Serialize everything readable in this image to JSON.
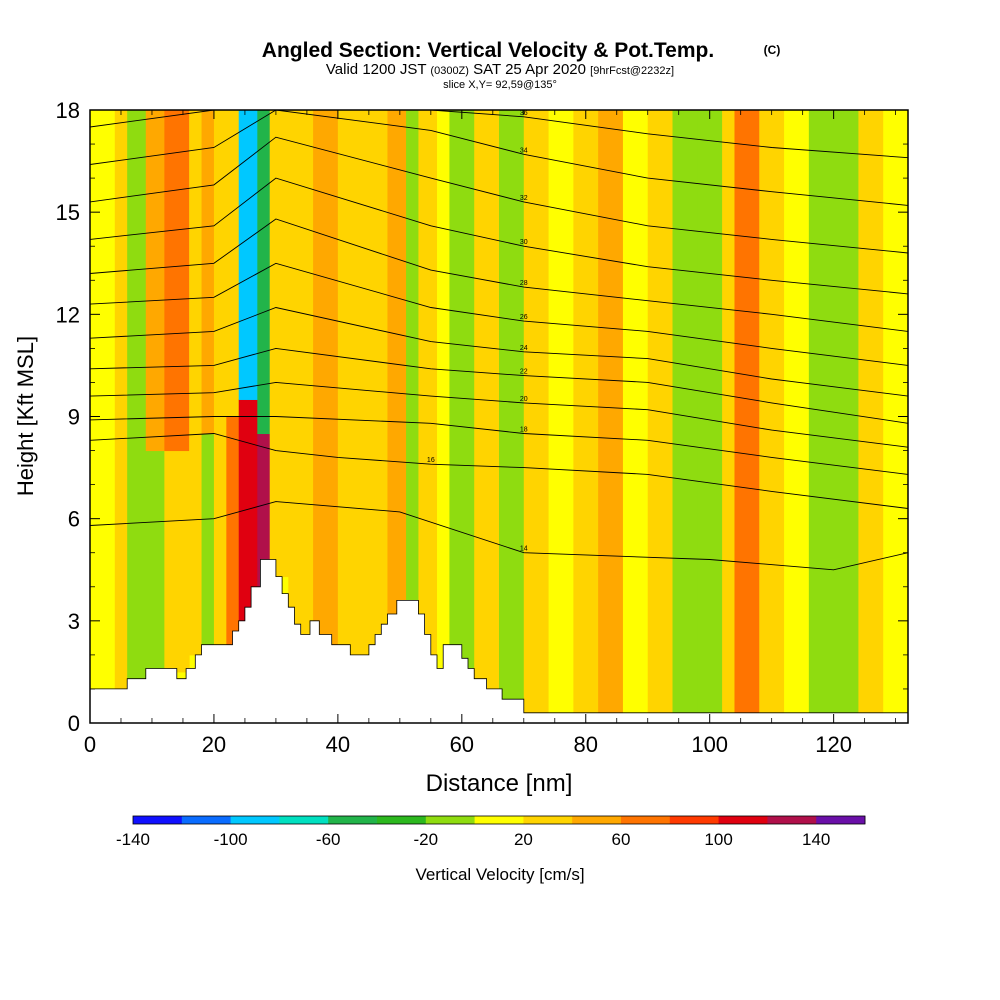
{
  "chart_data": {
    "type": "heatmap",
    "title": {
      "main": "Angled Section: Vertical Velocity & Pot.Temp.",
      "main_suffix": "(C)",
      "line2_a": "Valid 1200 JST",
      "line2_b": "(0300Z)",
      "line2_c": "SAT 25 Apr 2020",
      "line2_d": "[9hrFcst@2232z]",
      "line3": "slice X,Y= 92,59@135°"
    },
    "xlabel": "Distance [nm]",
    "ylabel": "Height [Kft MSL]",
    "xlim": [
      0,
      132
    ],
    "ylim": [
      0,
      18
    ],
    "xticks": [
      0,
      20,
      40,
      60,
      80,
      100,
      120
    ],
    "yticks": [
      0,
      3,
      6,
      9,
      12,
      15,
      18
    ],
    "colorbar": {
      "label": "Vertical Velocity [cm/s]",
      "ticks": [
        -140,
        -100,
        -60,
        -20,
        20,
        60,
        100,
        140
      ],
      "colors": [
        "#1010ff",
        "#0a6cff",
        "#00c8ff",
        "#00e0c0",
        "#22b44a",
        "#2cb81e",
        "#8fdc10",
        "#ffff00",
        "#ffd400",
        "#ffa800",
        "#ff7400",
        "#ff3a00",
        "#e00010",
        "#b0104a",
        "#6a10a8"
      ]
    },
    "terrain_height": [
      {
        "x": 0,
        "h": 1.0
      },
      {
        "x": 6,
        "h": 1.0
      },
      {
        "x": 6,
        "h": 1.3
      },
      {
        "x": 9,
        "h": 1.3
      },
      {
        "x": 9,
        "h": 1.6
      },
      {
        "x": 14,
        "h": 1.6
      },
      {
        "x": 14,
        "h": 1.3
      },
      {
        "x": 15.5,
        "h": 1.3
      },
      {
        "x": 15.5,
        "h": 1.6
      },
      {
        "x": 17,
        "h": 1.6
      },
      {
        "x": 17,
        "h": 2.0
      },
      {
        "x": 18,
        "h": 2.0
      },
      {
        "x": 18,
        "h": 2.3
      },
      {
        "x": 23,
        "h": 2.3
      },
      {
        "x": 23,
        "h": 2.7
      },
      {
        "x": 24,
        "h": 2.7
      },
      {
        "x": 24,
        "h": 3.0
      },
      {
        "x": 25,
        "h": 3.0
      },
      {
        "x": 25,
        "h": 3.4
      },
      {
        "x": 26,
        "h": 3.4
      },
      {
        "x": 26,
        "h": 4.0
      },
      {
        "x": 27.5,
        "h": 4.0
      },
      {
        "x": 27.5,
        "h": 4.8
      },
      {
        "x": 30,
        "h": 4.8
      },
      {
        "x": 30,
        "h": 4.3
      },
      {
        "x": 31,
        "h": 4.3
      },
      {
        "x": 31,
        "h": 3.8
      },
      {
        "x": 32,
        "h": 3.8
      },
      {
        "x": 32,
        "h": 3.4
      },
      {
        "x": 33,
        "h": 3.4
      },
      {
        "x": 33,
        "h": 2.9
      },
      {
        "x": 34,
        "h": 2.9
      },
      {
        "x": 34,
        "h": 2.6
      },
      {
        "x": 35.5,
        "h": 2.6
      },
      {
        "x": 35.5,
        "h": 3.0
      },
      {
        "x": 37,
        "h": 3.0
      },
      {
        "x": 37,
        "h": 2.6
      },
      {
        "x": 39,
        "h": 2.6
      },
      {
        "x": 39,
        "h": 2.3
      },
      {
        "x": 42,
        "h": 2.3
      },
      {
        "x": 42,
        "h": 2.0
      },
      {
        "x": 45,
        "h": 2.0
      },
      {
        "x": 45,
        "h": 2.3
      },
      {
        "x": 46,
        "h": 2.3
      },
      {
        "x": 46,
        "h": 2.6
      },
      {
        "x": 47,
        "h": 2.6
      },
      {
        "x": 47,
        "h": 2.9
      },
      {
        "x": 48,
        "h": 2.9
      },
      {
        "x": 48,
        "h": 3.2
      },
      {
        "x": 49.5,
        "h": 3.2
      },
      {
        "x": 49.5,
        "h": 3.6
      },
      {
        "x": 53,
        "h": 3.6
      },
      {
        "x": 53,
        "h": 3.2
      },
      {
        "x": 54,
        "h": 3.2
      },
      {
        "x": 54,
        "h": 2.6
      },
      {
        "x": 55,
        "h": 2.6
      },
      {
        "x": 55,
        "h": 2.0
      },
      {
        "x": 56,
        "h": 2.0
      },
      {
        "x": 56,
        "h": 1.6
      },
      {
        "x": 57,
        "h": 1.6
      },
      {
        "x": 57,
        "h": 2.3
      },
      {
        "x": 60,
        "h": 2.3
      },
      {
        "x": 60,
        "h": 1.9
      },
      {
        "x": 61,
        "h": 1.9
      },
      {
        "x": 61,
        "h": 1.6
      },
      {
        "x": 62,
        "h": 1.6
      },
      {
        "x": 62,
        "h": 1.3
      },
      {
        "x": 64,
        "h": 1.3
      },
      {
        "x": 64,
        "h": 1.0
      },
      {
        "x": 66.5,
        "h": 1.0
      },
      {
        "x": 66.5,
        "h": 0.7
      },
      {
        "x": 70,
        "h": 0.7
      },
      {
        "x": 70,
        "h": 0.3
      },
      {
        "x": 132,
        "h": 0.3
      }
    ],
    "color_bands": [
      {
        "x0": 0,
        "x1": 4,
        "y0": 0.8,
        "y1": 18,
        "v": -10
      },
      {
        "x0": 4,
        "x1": 6,
        "y0": 1.0,
        "y1": 18,
        "v": 20
      },
      {
        "x0": 6,
        "x1": 9,
        "y0": 1.0,
        "y1": 18,
        "v": -20
      },
      {
        "x0": 9,
        "x1": 12,
        "y0": 1.5,
        "y1": 8.0,
        "v": -30
      },
      {
        "x0": 9,
        "x1": 12,
        "y0": 8.0,
        "y1": 18,
        "v": 30
      },
      {
        "x0": 12,
        "x1": 16,
        "y0": 1.5,
        "y1": 8.0,
        "v": 10
      },
      {
        "x0": 12,
        "x1": 16,
        "y0": 8.0,
        "y1": 18,
        "v": 50
      },
      {
        "x0": 16,
        "x1": 18,
        "y0": 2.0,
        "y1": 18,
        "v": 20
      },
      {
        "x0": 18,
        "x1": 20,
        "y0": 2.3,
        "y1": 8.5,
        "v": -15
      },
      {
        "x0": 18,
        "x1": 20,
        "y0": 8.5,
        "y1": 18,
        "v": 30
      },
      {
        "x0": 20,
        "x1": 22,
        "y0": 2.3,
        "y1": 18,
        "v": 20
      },
      {
        "x0": 22,
        "x1": 24,
        "y0": 2.3,
        "y1": 9.0,
        "v": 60
      },
      {
        "x0": 22,
        "x1": 24,
        "y0": 9.0,
        "y1": 18,
        "v": 20
      },
      {
        "x0": 24,
        "x1": 27,
        "y0": 3.0,
        "y1": 9.5,
        "v": 100
      },
      {
        "x0": 24,
        "x1": 27,
        "y0": 9.5,
        "y1": 18,
        "v": -100
      },
      {
        "x0": 27,
        "x1": 29,
        "y0": 4.0,
        "y1": 8.5,
        "v": 110
      },
      {
        "x0": 27,
        "x1": 29,
        "y0": 8.5,
        "y1": 18,
        "v": -60
      },
      {
        "x0": 29,
        "x1": 32,
        "y0": 4.3,
        "y1": 18,
        "v": 20
      },
      {
        "x0": 32,
        "x1": 36,
        "y0": 2.6,
        "y1": 18,
        "v": 10
      },
      {
        "x0": 36,
        "x1": 40,
        "y0": 2.3,
        "y1": 18,
        "v": 30
      },
      {
        "x0": 40,
        "x1": 44,
        "y0": 2.0,
        "y1": 18,
        "v": 20
      },
      {
        "x0": 44,
        "x1": 48,
        "y0": 2.0,
        "y1": 18,
        "v": 10
      },
      {
        "x0": 48,
        "x1": 51,
        "y0": 3.2,
        "y1": 18,
        "v": 30
      },
      {
        "x0": 51,
        "x1": 53,
        "y0": 3.6,
        "y1": 18,
        "v": -20
      },
      {
        "x0": 53,
        "x1": 56,
        "y0": 1.6,
        "y1": 18,
        "v": 20
      },
      {
        "x0": 56,
        "x1": 58,
        "y0": 1.6,
        "y1": 18,
        "v": -10
      },
      {
        "x0": 58,
        "x1": 62,
        "y0": 1.6,
        "y1": 18,
        "v": -30
      },
      {
        "x0": 62,
        "x1": 66,
        "y0": 1.0,
        "y1": 18,
        "v": 10
      },
      {
        "x0": 66,
        "x1": 70,
        "y0": 0.7,
        "y1": 18,
        "v": -20
      },
      {
        "x0": 70,
        "x1": 74,
        "y0": 0.3,
        "y1": 18,
        "v": 20
      },
      {
        "x0": 74,
        "x1": 78,
        "y0": 0.3,
        "y1": 18,
        "v": -10
      },
      {
        "x0": 78,
        "x1": 82,
        "y0": 0.3,
        "y1": 18,
        "v": 20
      },
      {
        "x0": 82,
        "x1": 86,
        "y0": 0.3,
        "y1": 18,
        "v": 30
      },
      {
        "x0": 86,
        "x1": 90,
        "y0": 0.3,
        "y1": 18,
        "v": -10
      },
      {
        "x0": 90,
        "x1": 94,
        "y0": 0.3,
        "y1": 18,
        "v": 20
      },
      {
        "x0": 94,
        "x1": 98,
        "y0": 0.3,
        "y1": 18,
        "v": -20
      },
      {
        "x0": 98,
        "x1": 102,
        "y0": 0.3,
        "y1": 18,
        "v": -30
      },
      {
        "x0": 102,
        "x1": 104,
        "y0": 0.3,
        "y1": 18,
        "v": 20
      },
      {
        "x0": 104,
        "x1": 108,
        "y0": 0.3,
        "y1": 18,
        "v": 50
      },
      {
        "x0": 108,
        "x1": 112,
        "y0": 0.3,
        "y1": 18,
        "v": 20
      },
      {
        "x0": 112,
        "x1": 116,
        "y0": 0.3,
        "y1": 18,
        "v": -10
      },
      {
        "x0": 116,
        "x1": 120,
        "y0": 0.3,
        "y1": 18,
        "v": -30
      },
      {
        "x0": 120,
        "x1": 124,
        "y0": 0.3,
        "y1": 18,
        "v": -20
      },
      {
        "x0": 124,
        "x1": 128,
        "y0": 0.3,
        "y1": 18,
        "v": 20
      },
      {
        "x0": 128,
        "x1": 132,
        "y0": 0.3,
        "y1": 18,
        "v": -10
      }
    ],
    "isentropes": [
      {
        "label": "14",
        "points": [
          [
            0,
            5.8
          ],
          [
            20,
            6.0
          ],
          [
            30,
            6.5
          ],
          [
            50,
            6.2
          ],
          [
            70,
            5.0
          ],
          [
            100,
            4.8
          ],
          [
            120,
            4.5
          ],
          [
            132,
            5.0
          ]
        ]
      },
      {
        "label": "16",
        "points": [
          [
            0,
            8.3
          ],
          [
            20,
            8.5
          ],
          [
            30,
            8.0
          ],
          [
            40,
            7.8
          ],
          [
            55,
            7.6
          ],
          [
            70,
            7.5
          ],
          [
            90,
            7.3
          ],
          [
            110,
            6.8
          ],
          [
            132,
            6.3
          ]
        ]
      },
      {
        "label": "18",
        "points": [
          [
            0,
            8.9
          ],
          [
            20,
            9.0
          ],
          [
            30,
            9.0
          ],
          [
            55,
            8.8
          ],
          [
            70,
            8.5
          ],
          [
            90,
            8.3
          ],
          [
            110,
            7.8
          ],
          [
            132,
            7.3
          ]
        ]
      },
      {
        "label": "20",
        "points": [
          [
            0,
            9.6
          ],
          [
            20,
            9.7
          ],
          [
            30,
            10.0
          ],
          [
            55,
            9.6
          ],
          [
            70,
            9.4
          ],
          [
            90,
            9.2
          ],
          [
            110,
            8.6
          ],
          [
            132,
            8.1
          ]
        ]
      },
      {
        "label": "22",
        "points": [
          [
            0,
            10.4
          ],
          [
            20,
            10.5
          ],
          [
            30,
            11.0
          ],
          [
            55,
            10.4
          ],
          [
            70,
            10.2
          ],
          [
            90,
            10.0
          ],
          [
            110,
            9.4
          ],
          [
            132,
            8.8
          ]
        ]
      },
      {
        "label": "24",
        "points": [
          [
            0,
            11.3
          ],
          [
            20,
            11.5
          ],
          [
            30,
            12.2
          ],
          [
            55,
            11.2
          ],
          [
            70,
            10.9
          ],
          [
            90,
            10.7
          ],
          [
            110,
            10.1
          ],
          [
            132,
            9.6
          ]
        ]
      },
      {
        "label": "26",
        "points": [
          [
            0,
            12.3
          ],
          [
            20,
            12.5
          ],
          [
            30,
            13.5
          ],
          [
            55,
            12.2
          ],
          [
            70,
            11.8
          ],
          [
            90,
            11.5
          ],
          [
            110,
            11.0
          ],
          [
            132,
            10.5
          ]
        ]
      },
      {
        "label": "28",
        "points": [
          [
            0,
            13.2
          ],
          [
            20,
            13.5
          ],
          [
            30,
            14.8
          ],
          [
            55,
            13.3
          ],
          [
            70,
            12.8
          ],
          [
            90,
            12.4
          ],
          [
            110,
            12.0
          ],
          [
            132,
            11.5
          ]
        ]
      },
      {
        "label": "30",
        "points": [
          [
            0,
            14.2
          ],
          [
            20,
            14.6
          ],
          [
            30,
            16.0
          ],
          [
            55,
            14.6
          ],
          [
            70,
            14.0
          ],
          [
            90,
            13.4
          ],
          [
            110,
            13.0
          ],
          [
            132,
            12.6
          ]
        ]
      },
      {
        "label": "32",
        "points": [
          [
            0,
            15.3
          ],
          [
            20,
            15.8
          ],
          [
            30,
            17.2
          ],
          [
            55,
            16.0
          ],
          [
            70,
            15.3
          ],
          [
            90,
            14.6
          ],
          [
            110,
            14.2
          ],
          [
            132,
            13.8
          ]
        ]
      },
      {
        "label": "34",
        "points": [
          [
            0,
            16.4
          ],
          [
            20,
            16.9
          ],
          [
            30,
            18.0
          ],
          [
            55,
            17.4
          ],
          [
            70,
            16.7
          ],
          [
            90,
            16.0
          ],
          [
            110,
            15.6
          ],
          [
            132,
            15.2
          ]
        ]
      },
      {
        "label": "36",
        "points": [
          [
            0,
            17.5
          ],
          [
            20,
            18.0
          ],
          [
            55,
            18.0
          ],
          [
            70,
            17.8
          ],
          [
            90,
            17.3
          ],
          [
            110,
            16.9
          ],
          [
            132,
            16.6
          ]
        ]
      }
    ]
  }
}
